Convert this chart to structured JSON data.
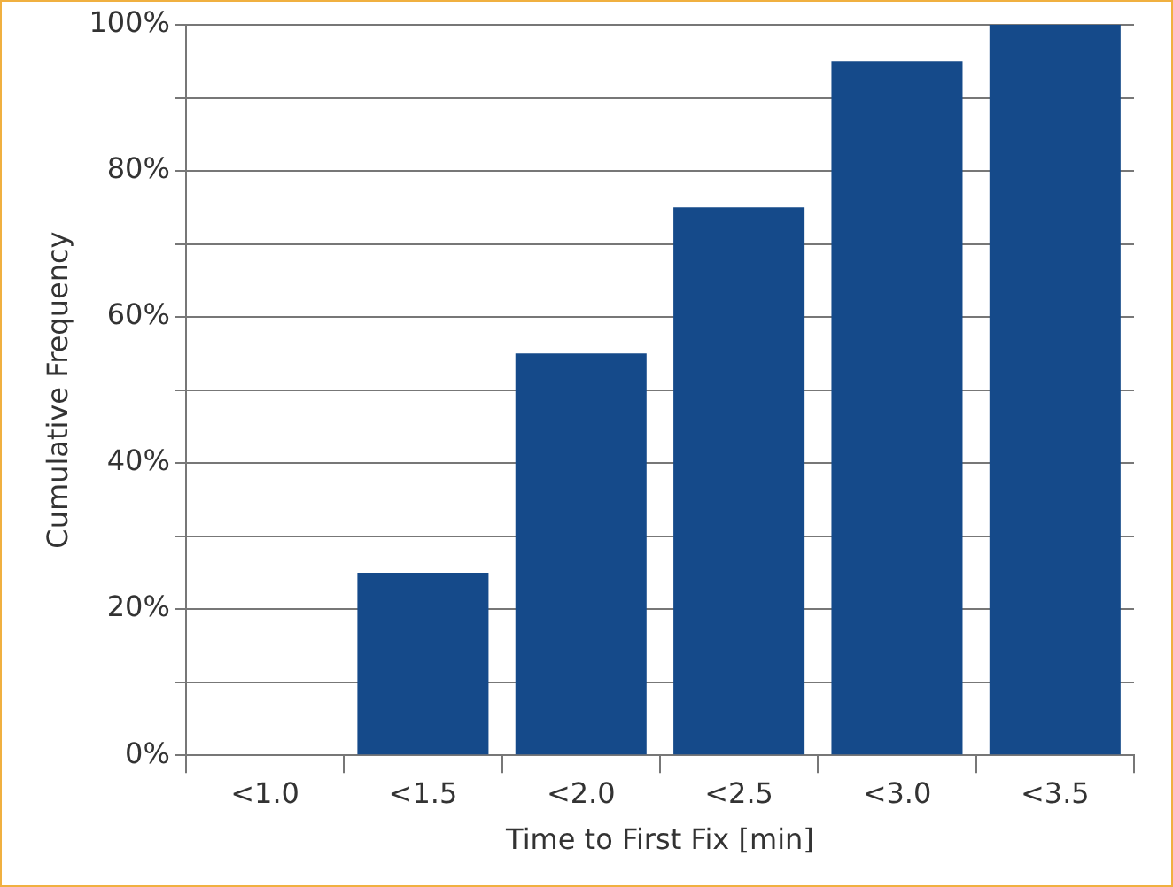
{
  "chart_data": {
    "type": "bar",
    "xlabel": "Time to First Fix [min]",
    "ylabel": "Cumulative Frequency",
    "categories": [
      "<1.0",
      "<1.5",
      "<2.0",
      "<2.5",
      "<3.0",
      "<3.5"
    ],
    "values": [
      0,
      25,
      55,
      75,
      95,
      100
    ],
    "color": "#154a8a",
    "ylim": [
      0,
      100
    ],
    "yticks": [
      {
        "value": 0,
        "label": "0%"
      },
      {
        "value": 10,
        "label": null
      },
      {
        "value": 20,
        "label": "20%"
      },
      {
        "value": 30,
        "label": null
      },
      {
        "value": 40,
        "label": "40%"
      },
      {
        "value": 50,
        "label": null
      },
      {
        "value": 60,
        "label": "60%"
      },
      {
        "value": 70,
        "label": null
      },
      {
        "value": 80,
        "label": "80%"
      },
      {
        "value": 90,
        "label": null
      },
      {
        "value": 100,
        "label": "100%"
      }
    ],
    "grid": "y",
    "legend": false
  }
}
